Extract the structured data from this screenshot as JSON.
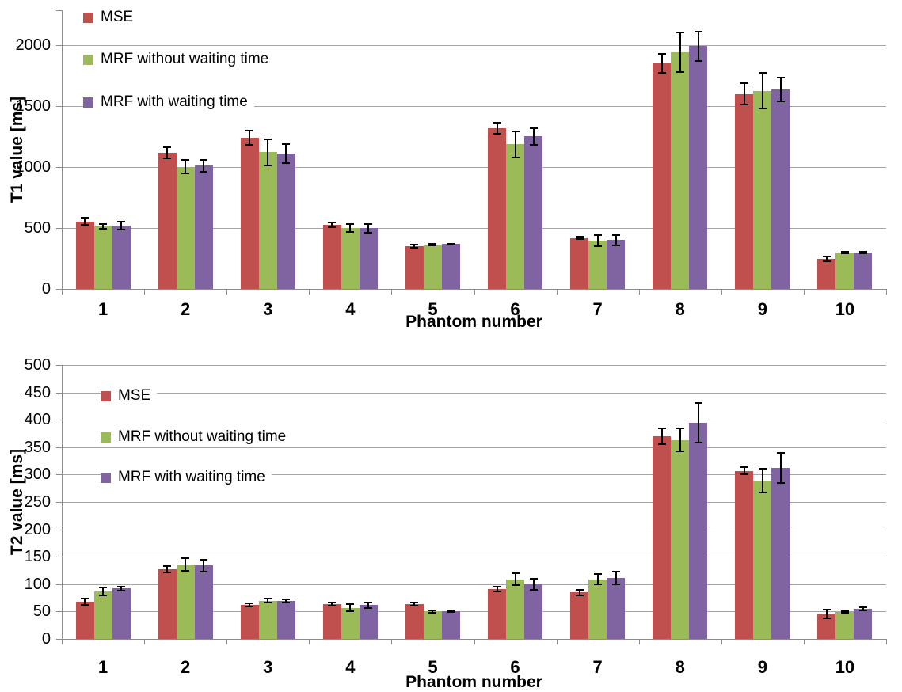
{
  "figure": {
    "background": "#ffffff",
    "gridline_color": "#a6a6a6",
    "axis_color": "#8c8c8c",
    "error_bar_color": "#000000"
  },
  "legend": {
    "items": [
      {
        "label": "MSE",
        "color": "#c0504d"
      },
      {
        "label": "MRF without waiting time",
        "color": "#9bbb59"
      },
      {
        "label": "MRF with waiting time",
        "color": "#8064a2"
      }
    ],
    "position": "upper-left-inside"
  },
  "chart_data": [
    {
      "type": "bar",
      "title": "",
      "ylabel": "T1 value [ms]",
      "xlabel": "Phantom number",
      "categories": [
        "1",
        "2",
        "3",
        "4",
        "5",
        "6",
        "7",
        "8",
        "9",
        "10"
      ],
      "ylim": [
        0,
        2285
      ],
      "ytick_step": 500,
      "ytick_labeled_max": 2000,
      "grid": true,
      "error_bars": true,
      "legend_position": "upper-left-inside",
      "series": [
        {
          "name": "MSE",
          "color": "#c0504d",
          "values": [
            555,
            1115,
            1240,
            525,
            352,
            1315,
            417,
            1850,
            1600,
            245
          ],
          "errors": [
            30,
            45,
            60,
            20,
            12,
            45,
            10,
            75,
            85,
            20
          ]
        },
        {
          "name": "MRF without waiting time",
          "color": "#9bbb59",
          "values": [
            515,
            1000,
            1120,
            500,
            365,
            1185,
            395,
            1940,
            1625,
            300
          ],
          "errors": [
            20,
            55,
            105,
            35,
            6,
            110,
            45,
            160,
            145,
            6
          ]
        },
        {
          "name": "MRF with waiting time",
          "color": "#8064a2",
          "values": [
            520,
            1010,
            1110,
            497,
            367,
            1250,
            402,
            1990,
            1635,
            300
          ],
          "errors": [
            35,
            50,
            80,
            35,
            6,
            70,
            42,
            120,
            95,
            6
          ]
        }
      ]
    },
    {
      "type": "bar",
      "title": "",
      "ylabel": "T2 value [ms]",
      "xlabel": "Phantom number",
      "categories": [
        "1",
        "2",
        "3",
        "4",
        "5",
        "6",
        "7",
        "8",
        "9",
        "10"
      ],
      "ylim": [
        0,
        500
      ],
      "ytick_step": 50,
      "ytick_labeled_max": 500,
      "grid": true,
      "error_bars": true,
      "legend_position": "upper-left-inside",
      "series": [
        {
          "name": "MSE",
          "color": "#c0504d",
          "values": [
            68,
            127,
            62,
            64,
            63,
            91,
            85,
            370,
            307,
            46
          ],
          "errors": [
            6,
            6,
            3,
            3,
            3,
            4,
            5,
            15,
            7,
            8
          ]
        },
        {
          "name": "MRF without waiting time",
          "color": "#9bbb59",
          "values": [
            87,
            136,
            70,
            57,
            50,
            109,
            109,
            363,
            289,
            49
          ],
          "errors": [
            7,
            11,
            3,
            6,
            2,
            11,
            9,
            21,
            21,
            2
          ]
        },
        {
          "name": "MRF with waiting time",
          "color": "#8064a2",
          "values": [
            92,
            134,
            69,
            62,
            50,
            100,
            111,
            395,
            312,
            55
          ],
          "errors": [
            4,
            11,
            3,
            5,
            1,
            10,
            12,
            36,
            27,
            3
          ]
        }
      ]
    }
  ]
}
